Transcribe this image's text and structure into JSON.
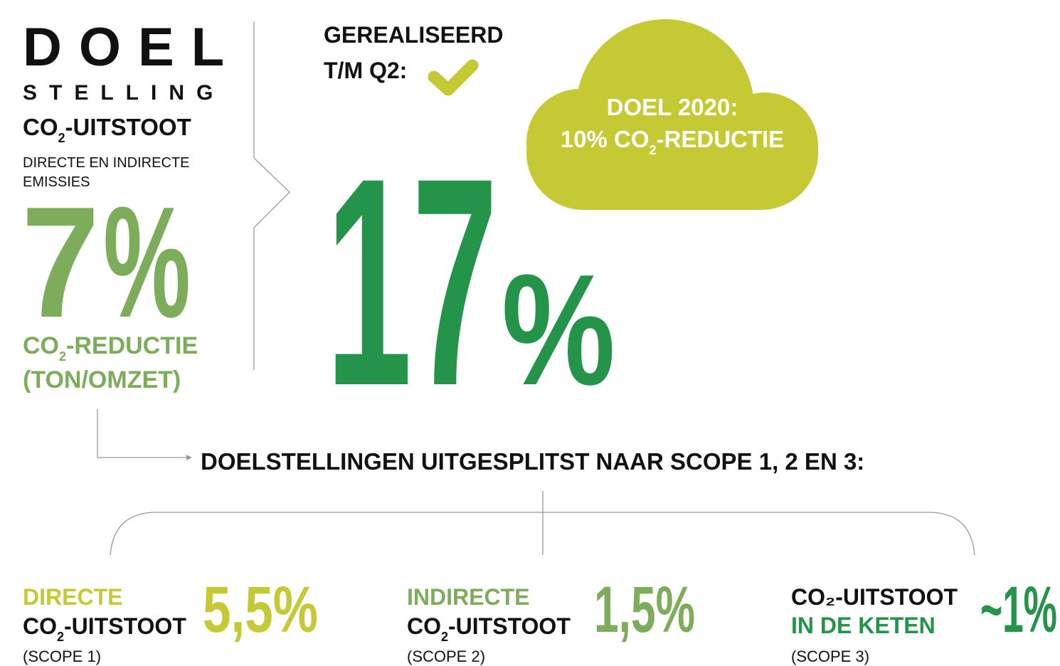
{
  "goal": {
    "title": "DOEL",
    "subtitle": "STELLING",
    "metric": {
      "pre": "CO",
      "sub": "2",
      "post": "-UITSTOOT"
    },
    "description": [
      "DIRECTE EN INDIRECTE",
      "EMISSIES"
    ],
    "number": "7",
    "unit": "%",
    "label": {
      "pre": "CO",
      "sub": "2",
      "post": "-REDUCTIE"
    },
    "label_line2": "(TON/OMZET)"
  },
  "realised": {
    "heading": [
      "GEREALISEERD",
      "T/M Q2:"
    ],
    "number": "17",
    "unit": "%"
  },
  "cloud": {
    "line1": "DOEL 2020:",
    "line2": {
      "pre": "10% CO",
      "sub": "2",
      "post": "-REDUCTIE"
    }
  },
  "breakdown_title": "DOELSTELLINGEN UITGESPLITST NAAR SCOPE 1, 2 EN 3:",
  "scopes": [
    {
      "line1": "DIRECTE",
      "line2": {
        "pre": "CO",
        "sub": "2",
        "post": "-UITSTOOT"
      },
      "scope": "(SCOPE 1)",
      "value": "5,5%"
    },
    {
      "line1": "INDIRECTE",
      "line2": {
        "pre": "CO",
        "sub": "2",
        "post": "-UITSTOOT"
      },
      "scope": "(SCOPE 2)",
      "value": "1,5%"
    },
    {
      "line1": "CO₂-UITSTOOT",
      "line2": "IN DE KETEN",
      "scope": "(SCOPE 3)",
      "value": "~1%"
    }
  ]
}
